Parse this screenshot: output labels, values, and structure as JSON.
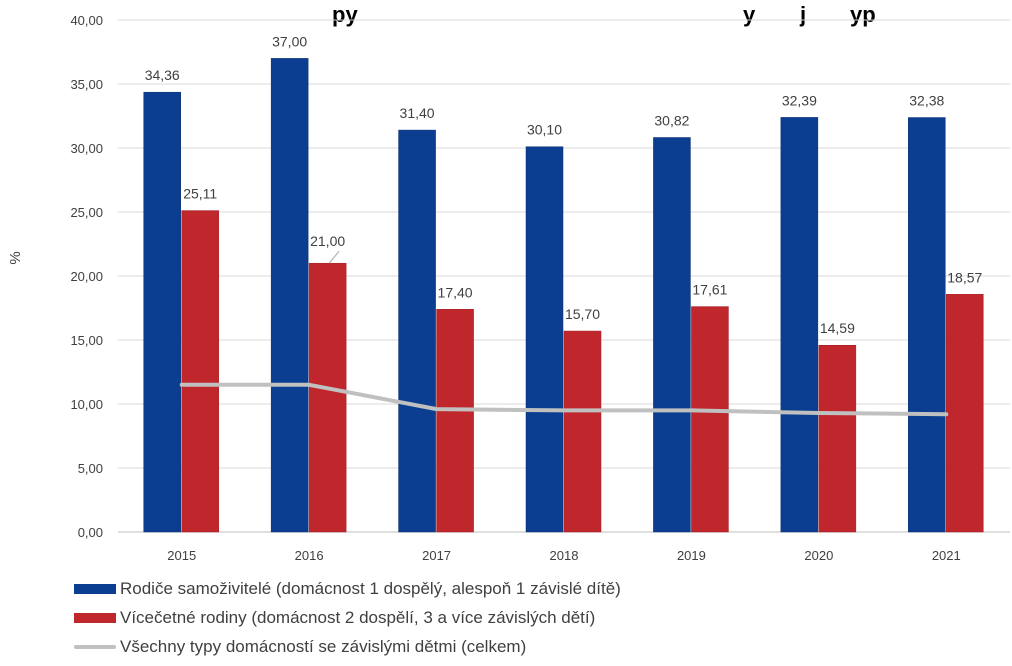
{
  "chart_data": {
    "type": "bar",
    "title": "",
    "title_visible_fragment": "py",
    "title_visible_fragment_2": "y",
    "title_visible_fragment_3": "j",
    "title_visible_fragment_4": "yp",
    "ylabel": "%",
    "xlabel": "",
    "ylim": [
      0,
      40
    ],
    "yticks": [
      "0,00",
      "5,00",
      "10,00",
      "15,00",
      "20,00",
      "25,00",
      "30,00",
      "35,00",
      "40,00"
    ],
    "categories": [
      "2015",
      "2016",
      "2017",
      "2018",
      "2019",
      "2020",
      "2021"
    ],
    "series": [
      {
        "name": "Rodiče samoživitelé (domácnost 1 dospělý, alespoň 1 závislé dítě)",
        "kind": "bar",
        "color": "#0b3d91",
        "values": [
          34.36,
          37.0,
          31.4,
          30.1,
          30.82,
          32.39,
          32.38
        ],
        "labels": [
          "34,36",
          "37,00",
          "31,40",
          "30,10",
          "30,82",
          "32,39",
          "32,38"
        ]
      },
      {
        "name": "Vícečetné rodiny (domácnost 2 dospělí, 3 a více závislých dětí)",
        "kind": "bar",
        "color": "#c0272d",
        "values": [
          25.11,
          21.0,
          17.4,
          15.7,
          17.61,
          14.59,
          18.57
        ],
        "labels": [
          "25,11",
          "21,00",
          "17,40",
          "15,70",
          "17,61",
          "14,59",
          "18,57"
        ]
      },
      {
        "name": "Všechny typy domácností se závislými dětmi (celkem)",
        "kind": "line",
        "color": "#c0c0c0",
        "values": [
          11.5,
          11.5,
          9.6,
          9.5,
          9.5,
          9.3,
          9.2
        ]
      }
    ],
    "grid": true,
    "legend_position": "bottom-left"
  }
}
